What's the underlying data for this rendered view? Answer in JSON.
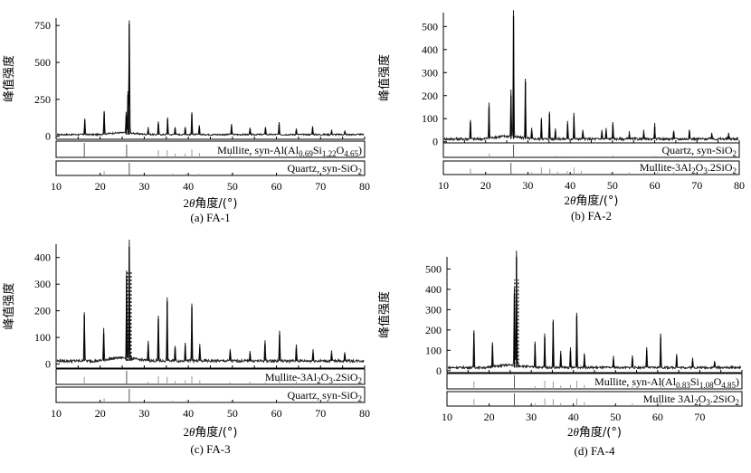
{
  "figure": {
    "xlabel": "2θ角度/(°)",
    "ylabel": "峰值强度"
  },
  "chart_data": [
    {
      "id": "FA-1",
      "type": "line",
      "caption": "(a) FA-1",
      "title": "",
      "xlabel": "2θ角度/(°)",
      "ylabel": "峰值强度",
      "xlim": [
        10,
        80
      ],
      "ylim": [
        -20,
        800
      ],
      "x_ticks": [
        10,
        20,
        30,
        40,
        50,
        60,
        70,
        80
      ],
      "y_ticks": [
        0,
        250,
        500,
        750
      ],
      "baseline": 12,
      "peaks": [
        {
          "x": 16.5,
          "y": 110
        },
        {
          "x": 20.9,
          "y": 160
        },
        {
          "x": 25.9,
          "y": 140
        },
        {
          "x": 26.3,
          "y": 280
        },
        {
          "x": 26.6,
          "y": 760
        },
        {
          "x": 30.9,
          "y": 45
        },
        {
          "x": 33.2,
          "y": 85
        },
        {
          "x": 35.3,
          "y": 115
        },
        {
          "x": 37.0,
          "y": 55
        },
        {
          "x": 39.3,
          "y": 55
        },
        {
          "x": 40.8,
          "y": 150
        },
        {
          "x": 42.5,
          "y": 65
        },
        {
          "x": 49.8,
          "y": 70
        },
        {
          "x": 54.0,
          "y": 45
        },
        {
          "x": 57.5,
          "y": 55
        },
        {
          "x": 60.6,
          "y": 80
        },
        {
          "x": 64.5,
          "y": 40
        },
        {
          "x": 68.2,
          "y": 55
        },
        {
          "x": 72.5,
          "y": 30
        },
        {
          "x": 75.5,
          "y": 25
        }
      ],
      "reference_patterns": [
        {
          "label": "Mullite, syn-Al(Al0.69Si1.22O4.65)",
          "label_base": "Mullite, syn-Al(Al",
          "label_parts": [
            "0.69",
            "Si",
            "1.22",
            "O",
            "4.65",
            ")"
          ],
          "peaks": [
            {
              "x": 16.4,
              "h": 1
            },
            {
              "x": 26.0,
              "h": 0.9
            },
            {
              "x": 33.2,
              "h": 0.5
            },
            {
              "x": 35.2,
              "h": 0.5
            },
            {
              "x": 37.0,
              "h": 0.25
            },
            {
              "x": 39.3,
              "h": 0.25
            },
            {
              "x": 40.8,
              "h": 0.55
            },
            {
              "x": 42.5,
              "h": 0.3
            },
            {
              "x": 49.5,
              "h": 0.2
            },
            {
              "x": 54.0,
              "h": 0.2
            },
            {
              "x": 60.6,
              "h": 0.3
            },
            {
              "x": 64.5,
              "h": 0.15
            }
          ]
        },
        {
          "label": "Quartz, syn-SiO2",
          "label_base": "Quartz, syn-SiO",
          "label_parts": [
            "2"
          ],
          "peaks": [
            {
              "x": 20.9,
              "h": 0.35
            },
            {
              "x": 26.6,
              "h": 1
            },
            {
              "x": 36.5,
              "h": 0.15
            },
            {
              "x": 39.5,
              "h": 0.15
            },
            {
              "x": 40.3,
              "h": 0.1
            },
            {
              "x": 42.5,
              "h": 0.12
            },
            {
              "x": 45.8,
              "h": 0.1
            },
            {
              "x": 50.1,
              "h": 0.2
            },
            {
              "x": 54.9,
              "h": 0.1
            },
            {
              "x": 60.0,
              "h": 0.15
            },
            {
              "x": 68.2,
              "h": 0.12
            }
          ]
        }
      ]
    },
    {
      "id": "FA-2",
      "type": "line",
      "caption": "(b) FA-2",
      "title": "",
      "xlabel": "2θ角度/(°)",
      "ylabel": "峰值强度",
      "xlim": [
        10,
        80
      ],
      "ylim": [
        -5,
        560
      ],
      "x_ticks": [
        10,
        20,
        30,
        40,
        50,
        60,
        70,
        80
      ],
      "y_ticks": [
        0,
        100,
        200,
        300,
        400,
        500
      ],
      "baseline": 12,
      "peaks": [
        {
          "x": 16.4,
          "y": 85
        },
        {
          "x": 20.8,
          "y": 150
        },
        {
          "x": 26.0,
          "y": 200
        },
        {
          "x": 26.6,
          "y": 545
        },
        {
          "x": 29.4,
          "y": 260
        },
        {
          "x": 30.9,
          "y": 45
        },
        {
          "x": 33.2,
          "y": 95
        },
        {
          "x": 35.1,
          "y": 120
        },
        {
          "x": 36.5,
          "y": 45
        },
        {
          "x": 39.4,
          "y": 75
        },
        {
          "x": 40.9,
          "y": 110
        },
        {
          "x": 43.0,
          "y": 40
        },
        {
          "x": 47.5,
          "y": 40
        },
        {
          "x": 48.5,
          "y": 45
        },
        {
          "x": 50.1,
          "y": 75
        },
        {
          "x": 54.0,
          "y": 30
        },
        {
          "x": 57.4,
          "y": 35
        },
        {
          "x": 60.0,
          "y": 65
        },
        {
          "x": 64.5,
          "y": 40
        },
        {
          "x": 68.2,
          "y": 45
        },
        {
          "x": 73.5,
          "y": 30
        },
        {
          "x": 77.5,
          "y": 25
        }
      ],
      "reference_patterns": [
        {
          "label": "Quartz, syn-SiO2",
          "label_base": "Quartz, syn-SiO",
          "label_parts": [
            "2"
          ],
          "peaks": [
            {
              "x": 20.9,
              "h": 0.3
            },
            {
              "x": 26.6,
              "h": 1
            },
            {
              "x": 36.5,
              "h": 0.12
            },
            {
              "x": 39.5,
              "h": 0.12
            },
            {
              "x": 42.5,
              "h": 0.1
            },
            {
              "x": 50.1,
              "h": 0.18
            },
            {
              "x": 60.0,
              "h": 0.12
            },
            {
              "x": 68.2,
              "h": 0.1
            }
          ]
        },
        {
          "label": "Mullite-3Al2O3.2SiO2",
          "label_base": "Mullite-3Al",
          "label_parts": [
            "2",
            "O",
            "3",
            ".2SiO",
            "2"
          ],
          "peaks": [
            {
              "x": 16.4,
              "h": 0.5
            },
            {
              "x": 26.0,
              "h": 1
            },
            {
              "x": 30.9,
              "h": 0.2
            },
            {
              "x": 33.2,
              "h": 0.6
            },
            {
              "x": 35.2,
              "h": 0.5
            },
            {
              "x": 37.0,
              "h": 0.25
            },
            {
              "x": 39.3,
              "h": 0.3
            },
            {
              "x": 40.9,
              "h": 0.6
            },
            {
              "x": 42.6,
              "h": 0.3
            },
            {
              "x": 49.5,
              "h": 0.15
            },
            {
              "x": 54.0,
              "h": 0.2
            },
            {
              "x": 57.5,
              "h": 0.15
            },
            {
              "x": 60.7,
              "h": 0.25
            },
            {
              "x": 64.5,
              "h": 0.2
            }
          ]
        }
      ]
    },
    {
      "id": "FA-3",
      "type": "line",
      "caption": "(c) FA-3",
      "title": "",
      "xlabel": "2θ角度/(°)",
      "ylabel": "峰值强度",
      "xlim": [
        10,
        80
      ],
      "ylim": [
        -15,
        450
      ],
      "x_ticks": [
        10,
        20,
        30,
        40,
        50,
        60,
        70,
        80
      ],
      "y_ticks": [
        0,
        100,
        200,
        300,
        400
      ],
      "baseline": 12,
      "peaks": [
        {
          "x": 16.4,
          "y": 185
        },
        {
          "x": 20.8,
          "y": 115
        },
        {
          "x": 26.0,
          "y": 330
        },
        {
          "x": 26.6,
          "y": 440
        },
        {
          "x": 30.9,
          "y": 75
        },
        {
          "x": 33.2,
          "y": 170
        },
        {
          "x": 35.2,
          "y": 235
        },
        {
          "x": 37.0,
          "y": 60
        },
        {
          "x": 39.3,
          "y": 70
        },
        {
          "x": 40.8,
          "y": 215
        },
        {
          "x": 42.6,
          "y": 60
        },
        {
          "x": 49.5,
          "y": 45
        },
        {
          "x": 54.0,
          "y": 40
        },
        {
          "x": 57.4,
          "y": 75
        },
        {
          "x": 60.7,
          "y": 110
        },
        {
          "x": 64.5,
          "y": 60
        },
        {
          "x": 68.3,
          "y": 40
        },
        {
          "x": 72.5,
          "y": 35
        },
        {
          "x": 75.5,
          "y": 35
        }
      ],
      "reference_patterns": [
        {
          "label": "Mullite-3Al2O3.2SiO2",
          "label_base": "Mullite-3Al",
          "label_parts": [
            "2",
            "O",
            "3",
            ".2SiO",
            "2"
          ],
          "peaks": [
            {
              "x": 16.4,
              "h": 0.55
            },
            {
              "x": 26.0,
              "h": 1
            },
            {
              "x": 30.9,
              "h": 0.2
            },
            {
              "x": 33.2,
              "h": 0.6
            },
            {
              "x": 35.2,
              "h": 0.55
            },
            {
              "x": 37.0,
              "h": 0.25
            },
            {
              "x": 39.3,
              "h": 0.3
            },
            {
              "x": 40.8,
              "h": 0.6
            },
            {
              "x": 42.6,
              "h": 0.3
            },
            {
              "x": 49.5,
              "h": 0.15
            },
            {
              "x": 54.0,
              "h": 0.2
            },
            {
              "x": 57.5,
              "h": 0.15
            },
            {
              "x": 60.7,
              "h": 0.25
            },
            {
              "x": 64.5,
              "h": 0.2
            }
          ]
        },
        {
          "label": "Quartz, syn-SiO2",
          "label_base": "Quartz, syn-SiO",
          "label_parts": [
            "2"
          ],
          "peaks": [
            {
              "x": 20.9,
              "h": 0.3
            },
            {
              "x": 26.6,
              "h": 1
            },
            {
              "x": 36.5,
              "h": 0.12
            },
            {
              "x": 39.5,
              "h": 0.12
            },
            {
              "x": 42.5,
              "h": 0.1
            },
            {
              "x": 50.1,
              "h": 0.15
            },
            {
              "x": 60.0,
              "h": 0.12
            },
            {
              "x": 68.2,
              "h": 0.1
            }
          ]
        }
      ]
    },
    {
      "id": "FA-4",
      "type": "line",
      "caption": "(d) FA-4",
      "title": "",
      "xlabel": "2θ角度/(°)",
      "ylabel": "峰值强度",
      "xlim": [
        10,
        80
      ],
      "ylim": [
        -10,
        560
      ],
      "x_ticks": [
        10,
        20,
        30,
        40,
        50,
        60,
        70
      ],
      "y_ticks": [
        0,
        100,
        200,
        300,
        400,
        500
      ],
      "baseline": 15,
      "peaks": [
        {
          "x": 16.4,
          "y": 185
        },
        {
          "x": 20.8,
          "y": 125
        },
        {
          "x": 26.0,
          "y": 380
        },
        {
          "x": 26.5,
          "y": 560
        },
        {
          "x": 30.9,
          "y": 130
        },
        {
          "x": 33.2,
          "y": 165
        },
        {
          "x": 35.2,
          "y": 240
        },
        {
          "x": 37.0,
          "y": 80
        },
        {
          "x": 39.3,
          "y": 95
        },
        {
          "x": 40.8,
          "y": 270
        },
        {
          "x": 42.6,
          "y": 75
        },
        {
          "x": 49.5,
          "y": 55
        },
        {
          "x": 54.0,
          "y": 60
        },
        {
          "x": 57.4,
          "y": 100
        },
        {
          "x": 60.7,
          "y": 165
        },
        {
          "x": 64.5,
          "y": 70
        },
        {
          "x": 68.3,
          "y": 45
        },
        {
          "x": 73.5,
          "y": 35
        }
      ],
      "reference_patterns": [
        {
          "label": "Mullite, syn-Al(Al0.83Si1.08O4.85)",
          "label_base": "Mullite, syn-Al(Al",
          "label_parts": [
            "0.83",
            "Si",
            "1.08",
            "O",
            "4.85",
            ")"
          ],
          "peaks": [
            {
              "x": 16.4,
              "h": 0.55
            },
            {
              "x": 26.0,
              "h": 1
            },
            {
              "x": 30.9,
              "h": 0.2
            },
            {
              "x": 33.2,
              "h": 0.6
            },
            {
              "x": 35.2,
              "h": 0.55
            },
            {
              "x": 37.0,
              "h": 0.25
            },
            {
              "x": 39.3,
              "h": 0.3
            },
            {
              "x": 40.8,
              "h": 0.6
            },
            {
              "x": 42.6,
              "h": 0.3
            },
            {
              "x": 54.0,
              "h": 0.2
            },
            {
              "x": 60.7,
              "h": 0.25
            },
            {
              "x": 64.5,
              "h": 0.2
            }
          ]
        },
        {
          "label": "Mullite 3Al2O3.2SiO2",
          "label_base": "Mullite 3Al",
          "label_parts": [
            "2",
            "O",
            "3",
            ".2SiO",
            "2"
          ],
          "peaks": [
            {
              "x": 16.4,
              "h": 0.55
            },
            {
              "x": 26.0,
              "h": 1
            },
            {
              "x": 30.9,
              "h": 0.2
            },
            {
              "x": 33.2,
              "h": 0.6
            },
            {
              "x": 35.2,
              "h": 0.55
            },
            {
              "x": 37.0,
              "h": 0.25
            },
            {
              "x": 40.8,
              "h": 0.6
            },
            {
              "x": 42.6,
              "h": 0.3
            },
            {
              "x": 54.0,
              "h": 0.2
            },
            {
              "x": 60.7,
              "h": 0.25
            }
          ]
        }
      ]
    }
  ]
}
